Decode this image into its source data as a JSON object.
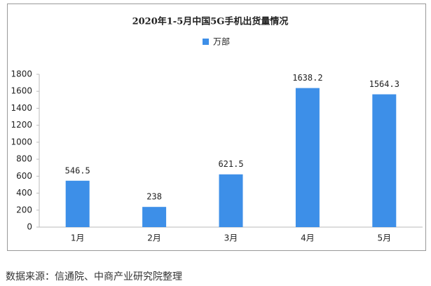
{
  "chart_data": {
    "type": "bar",
    "title": "2020年1-5月中国5G手机出货量情况",
    "categories": [
      "1月",
      "2月",
      "3月",
      "4月",
      "5月"
    ],
    "series": [
      {
        "name": "万部",
        "color": "#3d8fe8",
        "values": [
          546.5,
          238,
          621.5,
          1638.2,
          1564.3
        ]
      }
    ],
    "ylim": [
      0,
      1800
    ],
    "yticks": [
      0,
      200,
      400,
      600,
      800,
      1000,
      1200,
      1400,
      1600,
      1800
    ],
    "grid": false
  },
  "source": "数据来源：信通院、中商产业研究院整理"
}
